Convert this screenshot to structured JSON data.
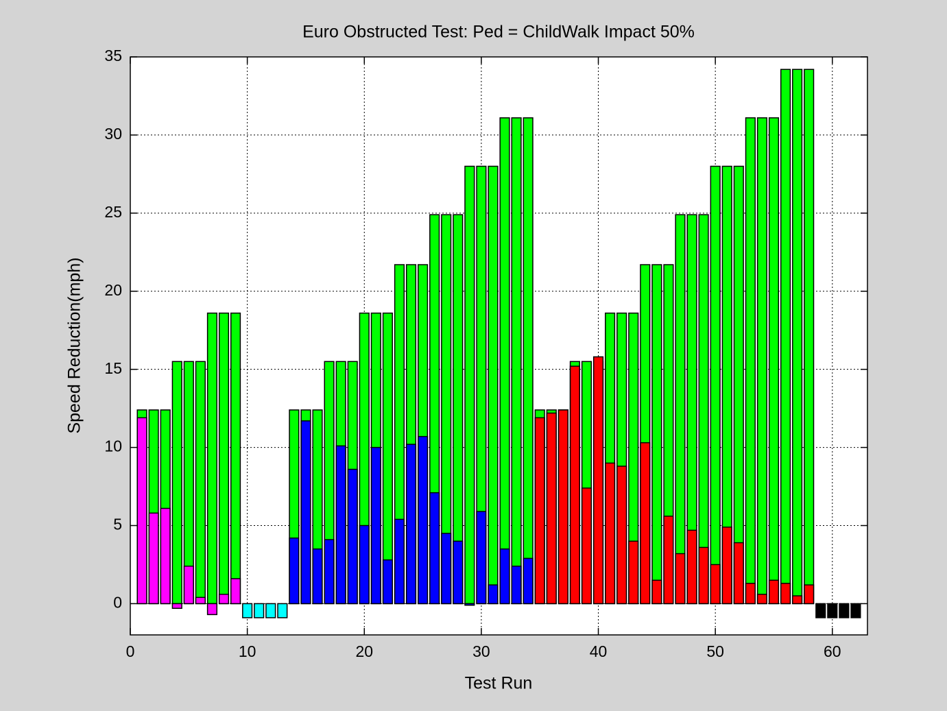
{
  "chart_data": {
    "type": "bar",
    "title": "Euro Obstructed Test: Ped = ChildWalk Impact 50%",
    "xlabel": "Test Run",
    "ylabel": "Speed Reduction(mph)",
    "xlim": [
      0,
      63
    ],
    "ylim": [
      -2,
      35
    ],
    "xticks": [
      0,
      10,
      20,
      30,
      40,
      50,
      60
    ],
    "yticks": [
      0,
      5,
      10,
      15,
      20,
      25,
      30,
      35
    ],
    "grid": true,
    "bar_width": 0.8,
    "series": [
      {
        "color": "#00ff00",
        "x": [
          1,
          2,
          3,
          4,
          5,
          6,
          7,
          8,
          9,
          14,
          15,
          16,
          17,
          18,
          19,
          20,
          21,
          22,
          23,
          24,
          25,
          26,
          27,
          28,
          29,
          30,
          31,
          32,
          33,
          34,
          35,
          36,
          37,
          38,
          39,
          40,
          41,
          42,
          43,
          44,
          45,
          46,
          47,
          48,
          49,
          50,
          51,
          52,
          53,
          54,
          55,
          56,
          57,
          58
        ],
        "values": [
          12.4,
          12.4,
          12.4,
          15.5,
          15.5,
          15.5,
          18.6,
          18.6,
          18.6,
          12.4,
          12.4,
          12.4,
          15.5,
          15.5,
          15.5,
          18.6,
          18.6,
          18.6,
          21.7,
          21.7,
          21.7,
          24.9,
          24.9,
          24.9,
          28.0,
          28.0,
          28.0,
          31.1,
          31.1,
          31.1,
          12.4,
          12.4,
          12.4,
          15.5,
          15.5,
          15.5,
          18.6,
          18.6,
          18.6,
          21.7,
          21.7,
          21.7,
          24.9,
          24.9,
          24.9,
          28.0,
          28.0,
          28.0,
          31.1,
          31.1,
          31.1,
          34.2,
          34.2,
          34.2
        ]
      },
      {
        "color": "#ff00ff",
        "x": [
          1,
          2,
          3,
          4,
          5,
          6,
          7,
          8,
          9
        ],
        "values": [
          11.9,
          5.8,
          6.1,
          -0.3,
          2.4,
          0.4,
          -0.7,
          0.6,
          1.6
        ]
      },
      {
        "color": "#00ffff",
        "x": [
          10,
          11,
          12,
          13
        ],
        "values": [
          -0.9,
          -0.9,
          -0.9,
          -0.9
        ]
      },
      {
        "color": "#0000ff",
        "x": [
          14,
          15,
          16,
          17,
          18,
          19,
          20,
          21,
          22,
          23,
          24,
          25,
          26,
          27,
          28,
          29,
          30,
          31,
          32,
          33,
          34
        ],
        "values": [
          4.2,
          11.7,
          3.5,
          4.1,
          10.1,
          8.6,
          5.0,
          10.0,
          2.8,
          5.4,
          10.2,
          10.7,
          7.1,
          4.5,
          4.0,
          -0.1,
          5.9,
          1.2,
          3.5,
          2.4,
          2.9
        ]
      },
      {
        "color": "#ff0000",
        "x": [
          35,
          36,
          37,
          38,
          39,
          40,
          41,
          42,
          43,
          44,
          45,
          46,
          47,
          48,
          49,
          50,
          51,
          52,
          53,
          54,
          55,
          56,
          57,
          58
        ],
        "values": [
          11.9,
          12.2,
          12.4,
          15.2,
          7.4,
          15.8,
          9.0,
          8.8,
          4.0,
          10.3,
          1.5,
          5.6,
          3.2,
          4.7,
          3.6,
          2.5,
          4.9,
          3.9,
          1.3,
          0.6,
          1.5,
          1.3,
          0.5,
          1.2
        ]
      },
      {
        "color": "#000000",
        "x": [
          59,
          60,
          61,
          62
        ],
        "values": [
          -0.9,
          -0.9,
          -0.9,
          -0.9
        ]
      }
    ]
  }
}
